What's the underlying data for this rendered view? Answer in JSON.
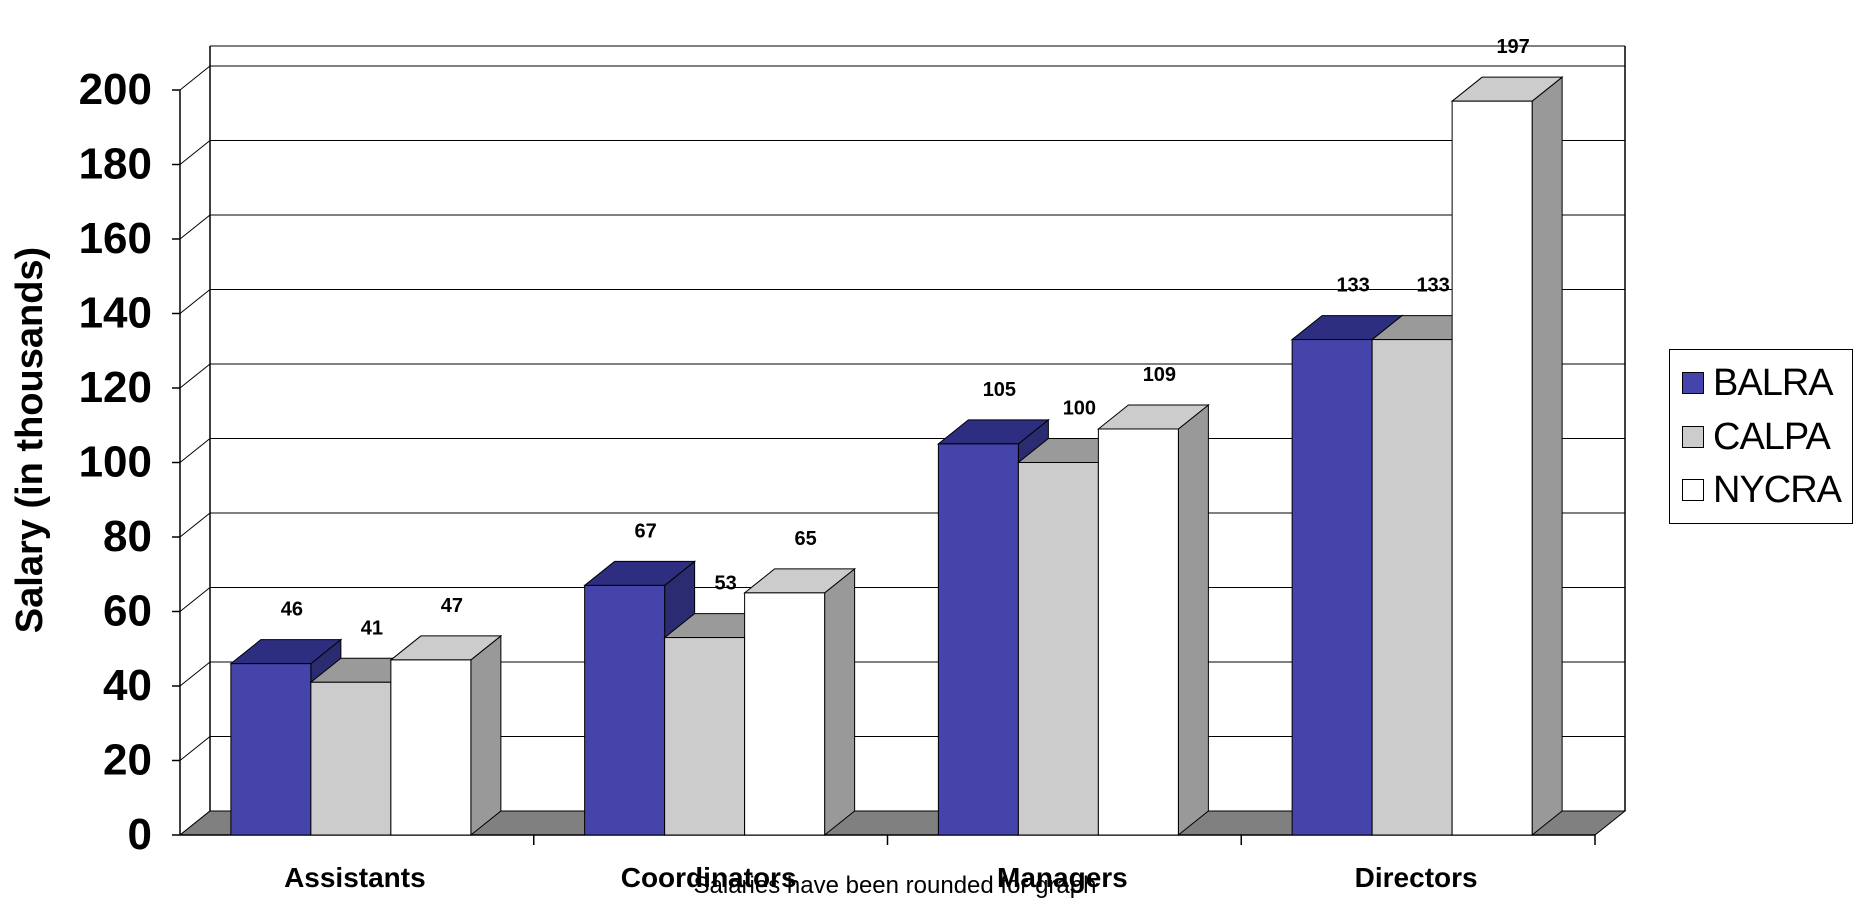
{
  "chart_data": {
    "type": "bar",
    "ylabel": "Salary (in thousands)",
    "xlabel": "Salaries have been rounded for graph",
    "ylim": [
      0,
      200
    ],
    "yticks": [
      "0",
      "20",
      "40",
      "60",
      "80",
      "100",
      "120",
      "140",
      "160",
      "180",
      "200"
    ],
    "grid": true,
    "legend_position": "right",
    "categories": [
      "Assistants",
      "Coordinators",
      "Managers",
      "Directors"
    ],
    "series": [
      {
        "name": "BALRA",
        "values": [
          46,
          67,
          105,
          133
        ],
        "color": "#4444aa",
        "side": "#2b2b72",
        "top": "#2e2e80"
      },
      {
        "name": "CALPA",
        "values": [
          41,
          53,
          100,
          133
        ],
        "color": "#cccccc",
        "side": "#999999",
        "top": "#9a9a9a"
      },
      {
        "name": "NYCRA",
        "values": [
          47,
          65,
          109,
          197
        ],
        "color": "#ffffff",
        "side": "#999999",
        "top": "#cccccc"
      }
    ]
  }
}
